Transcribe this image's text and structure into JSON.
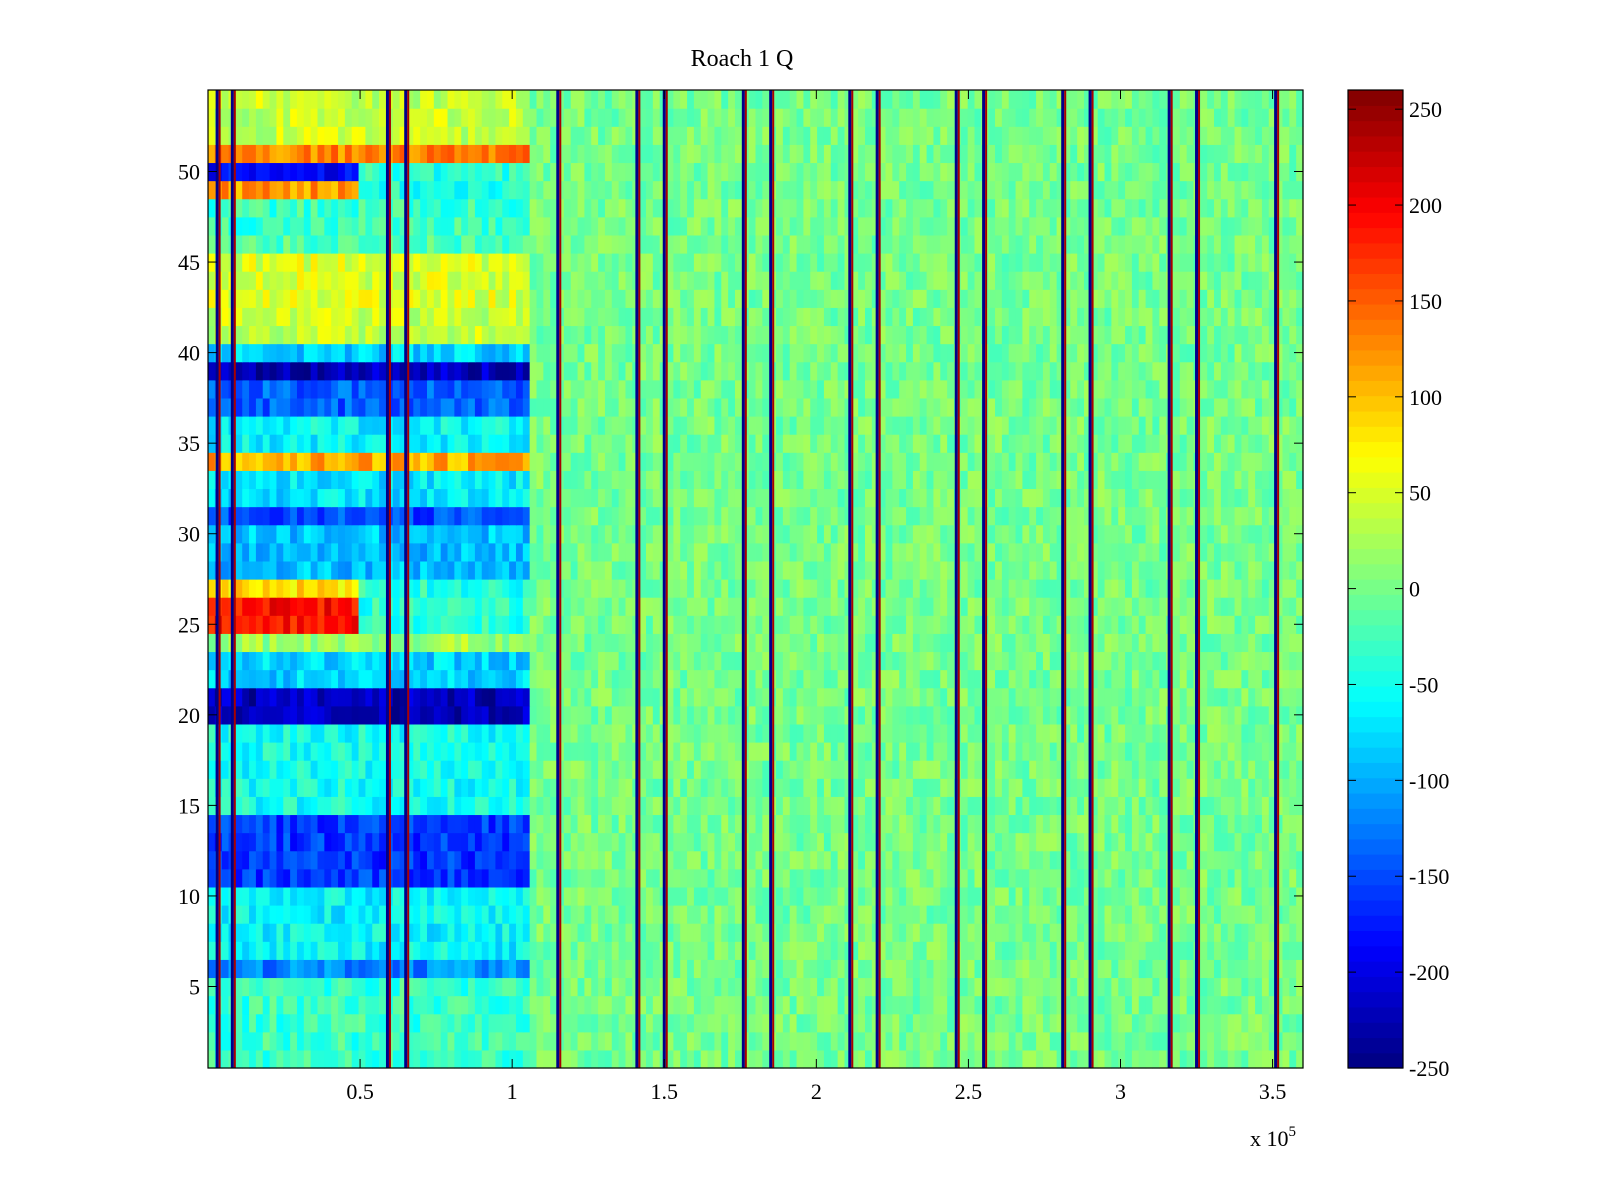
{
  "chart_data": {
    "type": "heatmap",
    "title": "Roach 1 Q",
    "xlabel": "",
    "ylabel": "",
    "x_multiplier_label": "x 10",
    "x_multiplier_exponent": "5",
    "xlim": [
      0,
      3.6
    ],
    "ylim": [
      0.5,
      54.5
    ],
    "x_ticks": [
      0.5,
      1,
      1.5,
      2,
      2.5,
      3,
      3.5
    ],
    "x_tick_labels": [
      "0.5",
      "1",
      "1.5",
      "2",
      "2.5",
      "3",
      "3.5"
    ],
    "y_ticks": [
      5,
      10,
      15,
      20,
      25,
      30,
      35,
      40,
      45,
      50
    ],
    "y_tick_labels": [
      "5",
      "10",
      "15",
      "20",
      "25",
      "30",
      "35",
      "40",
      "45",
      "50"
    ],
    "colorbar": {
      "colormap": "jet",
      "range": [
        -250,
        260
      ],
      "ticks": [
        -250,
        -200,
        -150,
        -100,
        -50,
        0,
        50,
        100,
        150,
        200,
        250
      ],
      "tick_labels": [
        "-250",
        "-200",
        "-150",
        "-100",
        "-50",
        "0",
        "50",
        "100",
        "150",
        "200",
        "250"
      ]
    },
    "rows": 54,
    "row_values_early_segment": [
      {
        "rows": [
          1,
          2,
          3,
          4,
          5
        ],
        "x_range": [
          0,
          1.05
        ],
        "value": -30
      },
      {
        "rows": [
          6
        ],
        "x_range": [
          0,
          1.05
        ],
        "value": -120
      },
      {
        "rows": [
          7,
          8,
          9,
          10
        ],
        "x_range": [
          0,
          1.05
        ],
        "value": -60
      },
      {
        "rows": [
          11,
          12,
          13,
          14
        ],
        "x_range": [
          0,
          1.05
        ],
        "value": -160
      },
      {
        "rows": [
          15,
          16,
          17,
          18,
          19
        ],
        "x_range": [
          0,
          1.05
        ],
        "value": -50
      },
      {
        "rows": [
          20,
          21
        ],
        "x_range": [
          0,
          1.05
        ],
        "value": -220
      },
      {
        "rows": [
          22,
          23
        ],
        "x_range": [
          0,
          1.05
        ],
        "value": -80
      },
      {
        "rows": [
          24
        ],
        "x_range": [
          0,
          1.05
        ],
        "value": 20
      },
      {
        "rows": [
          25,
          26
        ],
        "x_range": [
          0,
          0.5
        ],
        "value": 190
      },
      {
        "rows": [
          27
        ],
        "x_range": [
          0,
          0.5
        ],
        "value": 80
      },
      {
        "rows": [
          28,
          29,
          30
        ],
        "x_range": [
          0,
          1.05
        ],
        "value": -90
      },
      {
        "rows": [
          31
        ],
        "x_range": [
          0,
          1.05
        ],
        "value": -150
      },
      {
        "rows": [
          32,
          33
        ],
        "x_range": [
          0,
          1.05
        ],
        "value": -70
      },
      {
        "rows": [
          34
        ],
        "x_range": [
          0,
          1.05
        ],
        "value": 110
      },
      {
        "rows": [
          35,
          36
        ],
        "x_range": [
          0,
          1.05
        ],
        "value": -60
      },
      {
        "rows": [
          37,
          38
        ],
        "x_range": [
          0,
          1.05
        ],
        "value": -140
      },
      {
        "rows": [
          39
        ],
        "x_range": [
          0,
          1.05
        ],
        "value": -220
      },
      {
        "rows": [
          40
        ],
        "x_range": [
          0,
          1.05
        ],
        "value": -80
      },
      {
        "rows": [
          41,
          42
        ],
        "x_range": [
          0,
          1.05
        ],
        "value": 40
      },
      {
        "rows": [
          43,
          44,
          45
        ],
        "x_range": [
          0,
          1.05
        ],
        "value": 50
      },
      {
        "rows": [
          46
        ],
        "x_range": [
          0,
          1.05
        ],
        "value": -20
      },
      {
        "rows": [
          47,
          48
        ],
        "x_range": [
          0,
          1.05
        ],
        "value": -30
      },
      {
        "rows": [
          49
        ],
        "x_range": [
          0,
          0.5
        ],
        "value": 120
      },
      {
        "rows": [
          50
        ],
        "x_range": [
          0,
          0.5
        ],
        "value": -180
      },
      {
        "rows": [
          51
        ],
        "x_range": [
          0,
          1.05
        ],
        "value": 130
      },
      {
        "rows": [
          52,
          53,
          54
        ],
        "x_range": [
          0,
          1.05
        ],
        "value": 40
      }
    ],
    "background_value_late_segment": 0,
    "transient_vertical_lines_x": [
      0.03,
      0.08,
      0.59,
      0.65,
      1.15,
      1.41,
      1.5,
      1.76,
      1.85,
      2.11,
      2.2,
      2.46,
      2.55,
      2.81,
      2.9,
      3.16,
      3.25,
      3.51
    ]
  }
}
